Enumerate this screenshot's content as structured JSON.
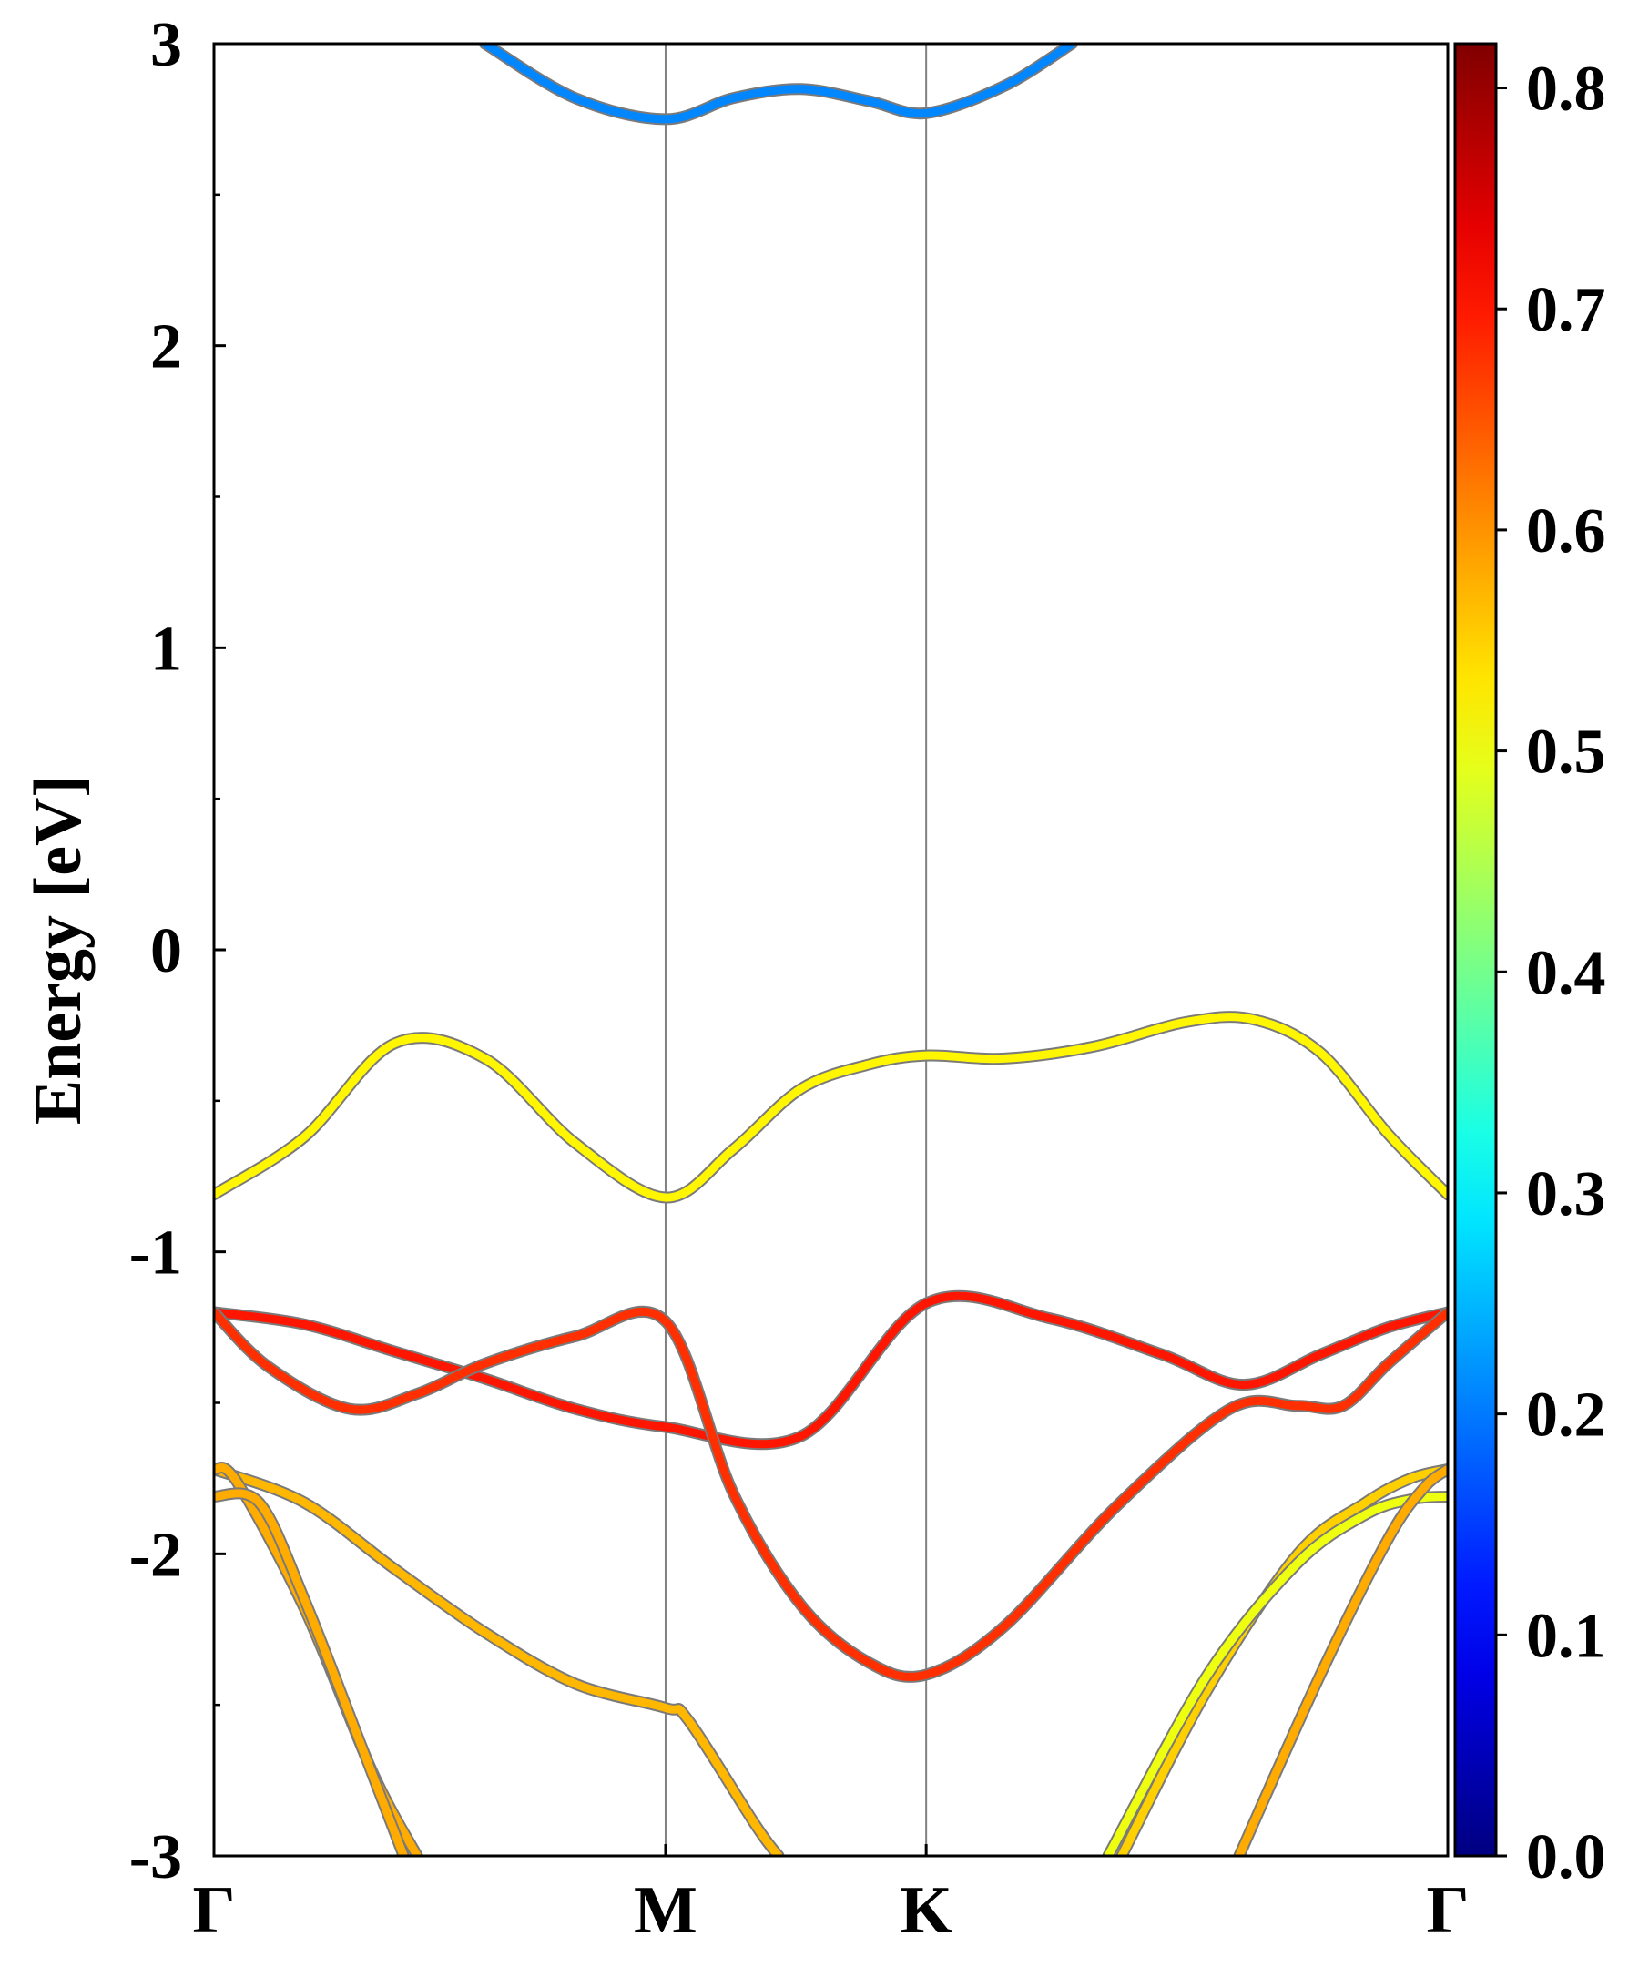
{
  "chart_data": {
    "type": "line",
    "title": "",
    "xlabel": "",
    "ylabel": "Energy [eV]",
    "ylim": [
      -3,
      3
    ],
    "yticks": [
      "-3",
      "-2",
      "-1",
      "0",
      "1",
      "2",
      "3"
    ],
    "high_symmetry_points": [
      {
        "label": "Γ",
        "k": 0.0
      },
      {
        "label": "M",
        "k": 1.0
      },
      {
        "label": "K",
        "k": 1.577
      },
      {
        "label": "Γ",
        "k": 2.732
      }
    ],
    "colorbar": {
      "colormap": "jet",
      "range": [
        0.0,
        0.82
      ],
      "ticks": [
        "0.0",
        "0.1",
        "0.2",
        "0.3",
        "0.4",
        "0.5",
        "0.6",
        "0.7",
        "0.8"
      ]
    },
    "series": [
      {
        "k": [
          0,
          0.2,
          0.4,
          0.6,
          0.8,
          1.0,
          1.15,
          1.3,
          1.45,
          1.577,
          1.75,
          1.95,
          2.15,
          2.3,
          2.45,
          2.6,
          2.732
        ],
        "energy": [
          -0.81,
          -0.62,
          -0.31,
          -0.36,
          -0.64,
          -0.82,
          -0.66,
          -0.46,
          -0.38,
          -0.35,
          -0.36,
          -0.32,
          -0.24,
          -0.23,
          -0.34,
          -0.61,
          -0.81
        ],
        "weight": 0.52
      },
      {
        "k": [
          0,
          0.2,
          0.4,
          0.6,
          0.8,
          1.0,
          1.3,
          1.577,
          1.85,
          2.1,
          2.28,
          2.45,
          2.6,
          2.732
        ],
        "energy": [
          -1.2,
          -1.24,
          -1.33,
          -1.42,
          -1.52,
          -1.58,
          -1.61,
          -1.17,
          -1.22,
          -1.34,
          -1.44,
          -1.34,
          -1.25,
          -1.2
        ],
        "weight": 0.7
      },
      {
        "k": [
          0,
          0.12,
          0.3,
          0.45,
          0.6,
          0.8,
          1.0,
          1.15,
          1.3,
          1.45,
          1.577,
          1.75,
          2.0,
          2.25,
          2.4,
          2.5,
          2.6,
          2.732
        ],
        "energy": [
          -1.2,
          -1.38,
          -1.52,
          -1.47,
          -1.37,
          -1.28,
          -1.23,
          -1.8,
          -2.17,
          -2.36,
          -2.4,
          -2.24,
          -1.84,
          -1.52,
          -1.51,
          -1.51,
          -1.37,
          -1.2
        ],
        "weight": 0.68
      },
      {
        "k": [
          0,
          0.2,
          0.4,
          0.6,
          0.8,
          1.0,
          1.05,
          1.2,
          1.25
        ],
        "energy": [
          -1.72,
          -1.83,
          -2.05,
          -2.26,
          -2.43,
          -2.51,
          -2.55,
          -2.9,
          -3.0
        ],
        "weight": 0.57
      },
      {
        "k": [
          0,
          0.05,
          0.2,
          0.35,
          0.45
        ],
        "energy": [
          -1.72,
          -1.76,
          -2.18,
          -2.72,
          -3.0
        ],
        "weight": 0.58
      },
      {
        "k": [
          0,
          0.1,
          0.2,
          0.33,
          0.42
        ],
        "energy": [
          -1.81,
          -1.83,
          -2.15,
          -2.65,
          -3.0
        ],
        "weight": 0.58
      },
      {
        "k": [
          2.01,
          2.2,
          2.4,
          2.55,
          2.65,
          2.732
        ],
        "energy": [
          -3.0,
          -2.45,
          -2.0,
          -1.83,
          -1.75,
          -1.72
        ],
        "weight": 0.55
      },
      {
        "k": [
          1.98,
          2.2,
          2.4,
          2.55,
          2.65,
          2.732
        ],
        "energy": [
          -3.0,
          -2.4,
          -2.03,
          -1.87,
          -1.82,
          -1.81
        ],
        "weight": 0.5
      },
      {
        "k": [
          2.27,
          2.45,
          2.6,
          2.68,
          2.732
        ],
        "energy": [
          -3.0,
          -2.4,
          -1.95,
          -1.78,
          -1.72
        ],
        "weight": 0.58
      },
      {
        "k": [
          0.6,
          0.8,
          1.0,
          1.15,
          1.3,
          1.45,
          1.577,
          1.75,
          1.9
        ],
        "energy": [
          3.0,
          2.82,
          2.75,
          2.82,
          2.85,
          2.81,
          2.77,
          2.86,
          3.0
        ],
        "weight": 0.21
      }
    ]
  }
}
